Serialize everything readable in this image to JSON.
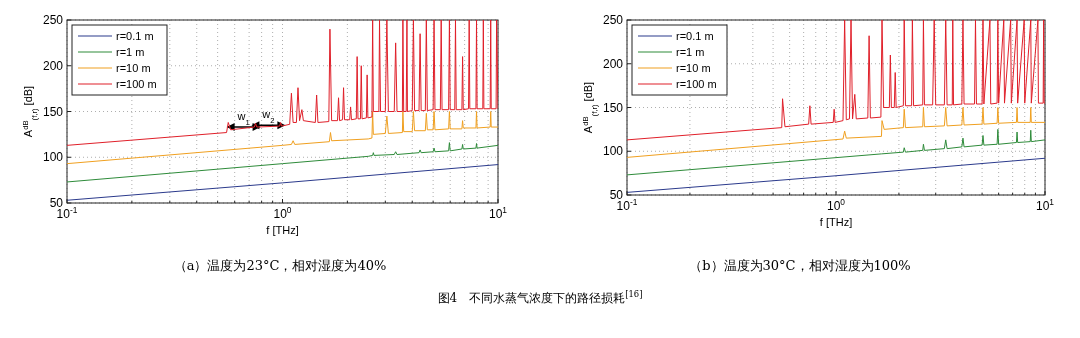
{
  "chart_data": [
    {
      "type": "line",
      "title": "（a）温度为23°C，相对湿度为40%",
      "xlabel": "f [THz]",
      "ylabel": "A$^{dB}$$_{(f,r)}$ [dB]",
      "log": "x",
      "grid": true,
      "legend": "top left",
      "xlim": [
        0.1,
        10
      ],
      "ylim": [
        50,
        250
      ],
      "xticks": [
        {
          "value": 0.1,
          "label": "10$^{-1}$"
        },
        {
          "value": 0.2,
          "label": null
        },
        {
          "value": 0.3,
          "label": null
        },
        {
          "value": 0.4,
          "label": null
        },
        {
          "value": 0.5,
          "label": null
        },
        {
          "value": 0.6,
          "label": null
        },
        {
          "value": 0.7,
          "label": null
        },
        {
          "value": 0.8,
          "label": null
        },
        {
          "value": 0.9,
          "label": null
        },
        {
          "value": 1,
          "label": "10$^{0}$"
        },
        {
          "value": 2,
          "label": null
        },
        {
          "value": 3,
          "label": null
        },
        {
          "value": 4,
          "label": null
        },
        {
          "value": 5,
          "label": null
        },
        {
          "value": 6,
          "label": null
        },
        {
          "value": 7,
          "label": null
        },
        {
          "value": 8,
          "label": null
        },
        {
          "value": 9,
          "label": null
        },
        {
          "value": 10,
          "label": "10$^{1}$"
        }
      ],
      "yticks": [
        50,
        100,
        150,
        200,
        250
      ],
      "annotations": [
        {
          "text": "w$_{1}$",
          "x": 0.66,
          "y": 133
        },
        {
          "text": "w$_{2}$",
          "x": 0.86,
          "y": 135
        }
      ],
      "series": [
        {
          "name": "r=0.1 m",
          "color": "#2b3a8c",
          "x": [
            0.1,
            1,
            10
          ],
          "values": [
            53,
            72,
            92
          ]
        },
        {
          "name": "r=1 m",
          "color": "#2e8b3a",
          "x": [
            0.1,
            1.0,
            2.5,
            2.62,
            2.64,
            2.66,
            3.3,
            3.35,
            3.4,
            4.3,
            4.35,
            4.4,
            5.0,
            5.05,
            5.1,
            5.9,
            5.95,
            6.0,
            6.8,
            6.85,
            6.9,
            7.9,
            7.95,
            8.0,
            10
          ],
          "values": [
            73,
            93,
            101,
            102,
            105,
            102,
            103,
            106,
            103,
            105,
            108,
            105,
            106,
            110,
            106,
            107,
            116,
            107,
            109,
            114,
            109,
            110,
            115,
            110,
            113
          ]
        },
        {
          "name": "r=10 m",
          "color": "#f0a020",
          "x": [
            0.1,
            1.0,
            1.1,
            1.12,
            1.14,
            1.65,
            1.67,
            1.69,
            2.5,
            2.6,
            2.62,
            2.64,
            3.0,
            3.05,
            3.1,
            3.6,
            3.62,
            3.65,
            4.0,
            4.05,
            4.1,
            4.6,
            4.65,
            4.7,
            5.0,
            5.05,
            5.1,
            5.9,
            5.95,
            6.0,
            6.8,
            6.85,
            6.9,
            7.9,
            7.95,
            8.0,
            9.2,
            9.25,
            9.3,
            10
          ],
          "values": [
            93,
            113,
            114,
            118,
            114,
            117,
            127,
            118,
            120,
            121,
            150,
            125,
            126,
            145,
            126,
            127,
            150,
            128,
            128,
            150,
            129,
            129,
            148,
            130,
            130,
            150,
            130,
            131,
            150,
            131,
            131,
            140,
            132,
            132,
            150,
            132,
            133,
            150,
            133,
            133
          ]
        },
        {
          "name": "r=100 m",
          "color": "#e0202a",
          "x": [
            0.1,
            0.55,
            0.56,
            0.575,
            0.74,
            0.75,
            0.76,
            0.97,
            0.98,
            0.99,
            1.08,
            1.1,
            1.12,
            1.16,
            1.18,
            1.2,
            1.23,
            1.25,
            1.42,
            1.44,
            1.46,
            1.64,
            1.66,
            1.69,
            1.8,
            1.82,
            1.84,
            1.9,
            1.92,
            1.94,
            2.05,
            2.07,
            2.09,
            2.2,
            2.22,
            2.24,
            2.3,
            2.32,
            2.34,
            2.45,
            2.47,
            2.49,
            2.6,
            2.62,
            2.64,
            2.8,
            2.82,
            2.85,
            3.0,
            3.05,
            3.1,
            3.3,
            3.35,
            3.4,
            3.6,
            3.62,
            3.65,
            3.75,
            3.78,
            3.8,
            4.0,
            4.05,
            4.1,
            4.3,
            4.35,
            4.4,
            4.6,
            4.65,
            4.7,
            5.0,
            5.05,
            5.1,
            5.4,
            5.45,
            5.5,
            5.9,
            5.95,
            6.0,
            6.3,
            6.35,
            6.4,
            6.8,
            6.85,
            6.9,
            7.3,
            7.35,
            7.4,
            7.9,
            7.95,
            8.0,
            8.5,
            8.55,
            8.6,
            9.2,
            9.25,
            9.3,
            9.8,
            9.85,
            10
          ],
          "values": [
            113,
            127,
            138,
            130,
            133,
            137,
            133,
            134,
            138,
            134,
            136,
            170,
            138,
            138,
            176,
            140,
            152,
            140,
            138,
            168,
            138,
            139,
            240,
            140,
            140,
            165,
            140,
            141,
            176,
            141,
            141,
            155,
            141,
            142,
            210,
            142,
            142,
            200,
            142,
            143,
            190,
            143,
            144,
            250,
            150,
            150,
            250,
            150,
            150,
            250,
            150,
            150,
            225,
            150,
            150,
            250,
            150,
            150,
            250,
            150,
            151,
            250,
            151,
            151,
            235,
            151,
            151,
            250,
            151,
            152,
            250,
            152,
            152,
            250,
            152,
            152,
            250,
            152,
            152,
            250,
            152,
            152,
            210,
            152,
            153,
            250,
            153,
            153,
            250,
            153,
            153,
            250,
            153,
            153,
            250,
            153,
            153,
            250,
            153
          ]
        }
      ]
    },
    {
      "type": "line",
      "title": "（b）温度为30°C，相对湿度为100%",
      "xlabel": "f [THz]",
      "ylabel": "A$^{dB}$$_{(f,r)}$ [dB]",
      "log": "x",
      "grid": true,
      "legend": "top left",
      "xlim": [
        0.1,
        10
      ],
      "ylim": [
        50,
        250
      ],
      "xticks": [
        {
          "value": 0.1,
          "label": "10$^{-1}$"
        },
        {
          "value": 0.2,
          "label": null
        },
        {
          "value": 0.3,
          "label": null
        },
        {
          "value": 0.4,
          "label": null
        },
        {
          "value": 0.5,
          "label": null
        },
        {
          "value": 0.6,
          "label": null
        },
        {
          "value": 0.7,
          "label": null
        },
        {
          "value": 0.8,
          "label": null
        },
        {
          "value": 0.9,
          "label": null
        },
        {
          "value": 1,
          "label": "10$^{0}$"
        },
        {
          "value": 2,
          "label": null
        },
        {
          "value": 3,
          "label": null
        },
        {
          "value": 4,
          "label": null
        },
        {
          "value": 5,
          "label": null
        },
        {
          "value": 6,
          "label": null
        },
        {
          "value": 7,
          "label": null
        },
        {
          "value": 8,
          "label": null
        },
        {
          "value": 9,
          "label": null
        },
        {
          "value": 10,
          "label": "10$^{1}$"
        }
      ],
      "yticks": [
        50,
        100,
        150,
        200,
        250
      ],
      "annotations": [
        "图4　不同水蒸气浓度下的路径损耗$^{[16]}$"
      ],
      "series": [
        {
          "name": "r=0.1 m",
          "color": "#2b3a8c",
          "x": [
            0.1,
            1,
            10
          ],
          "values": [
            53,
            72,
            92
          ]
        },
        {
          "name": "r=1 m",
          "color": "#2e8b3a",
          "x": [
            0.1,
            1.65,
            2.1,
            2.12,
            2.15,
            2.6,
            2.62,
            2.65,
            3.3,
            3.35,
            3.4,
            4.0,
            4.05,
            4.1,
            5.0,
            5.05,
            5.1,
            5.9,
            5.95,
            6.0,
            7.3,
            7.35,
            7.4,
            8.5,
            8.55,
            8.6,
            10
          ],
          "values": [
            73,
            97,
            99,
            104,
            99,
            101,
            108,
            101,
            103,
            113,
            103,
            105,
            115,
            105,
            107,
            118,
            107,
            108,
            125,
            108,
            110,
            122,
            110,
            111,
            124,
            111,
            113
          ]
        },
        {
          "name": "r=10 m",
          "color": "#f0a020",
          "x": [
            0.1,
            1.08,
            1.1,
            1.12,
            1.65,
            1.66,
            1.7,
            2.1,
            2.12,
            2.15,
            2.6,
            2.62,
            2.65,
            3.3,
            3.35,
            3.4,
            4.0,
            4.05,
            4.1,
            5.0,
            5.05,
            5.1,
            5.9,
            5.95,
            6.0,
            7.3,
            7.35,
            7.4,
            8.5,
            8.55,
            8.6,
            10
          ],
          "values": [
            93,
            114,
            123,
            115,
            117,
            135,
            125,
            127,
            148,
            127,
            128,
            150,
            128,
            129,
            150,
            129,
            130,
            150,
            130,
            131,
            150,
            131,
            132,
            150,
            132,
            133,
            150,
            133,
            133,
            150,
            133,
            133
          ]
        },
        {
          "name": "r=100 m",
          "color": "#e0202a",
          "x": [
            0.1,
            0.55,
            0.555,
            0.57,
            0.74,
            0.75,
            0.76,
            0.97,
            0.98,
            0.99,
            1.08,
            1.1,
            1.12,
            1.16,
            1.18,
            1.2,
            1.23,
            1.25,
            1.42,
            1.44,
            1.46,
            1.64,
            1.66,
            1.69,
            1.8,
            1.82,
            1.84,
            1.9,
            1.92,
            1.94,
            2.1,
            2.12,
            2.15,
            2.3,
            2.32,
            2.35,
            2.6,
            2.62,
            2.65,
            2.9,
            2.95,
            3.0,
            3.3,
            3.35,
            3.4,
            3.6,
            3.62,
            3.65,
            4.0,
            4.05,
            4.1,
            4.6,
            4.65,
            4.7,
            5.0,
            5.05,
            5.1,
            5.45,
            5.5,
            5.9,
            5.95,
            6.0,
            6.35,
            6.4,
            6.85,
            6.9,
            7.35,
            7.4,
            7.95,
            8.0,
            8.55,
            8.6,
            9.25,
            9.3,
            9.8,
            9.85,
            9.9,
            10
          ],
          "values": [
            113,
            127,
            160,
            128,
            131,
            152,
            131,
            133,
            148,
            133,
            135,
            250,
            136,
            137,
            250,
            137,
            165,
            137,
            138,
            232,
            138,
            139,
            250,
            150,
            150,
            210,
            150,
            150,
            190,
            150,
            152,
            250,
            152,
            152,
            250,
            152,
            153,
            250,
            153,
            153,
            250,
            153,
            153,
            250,
            153,
            153,
            250,
            153,
            154,
            250,
            154,
            154,
            250,
            154,
            154,
            250,
            154,
            250,
            154,
            155,
            250,
            155,
            250,
            155,
            250,
            155,
            250,
            155,
            250,
            155,
            250,
            155,
            250,
            155,
            155,
            250,
            155,
            155
          ]
        }
      ]
    }
  ]
}
